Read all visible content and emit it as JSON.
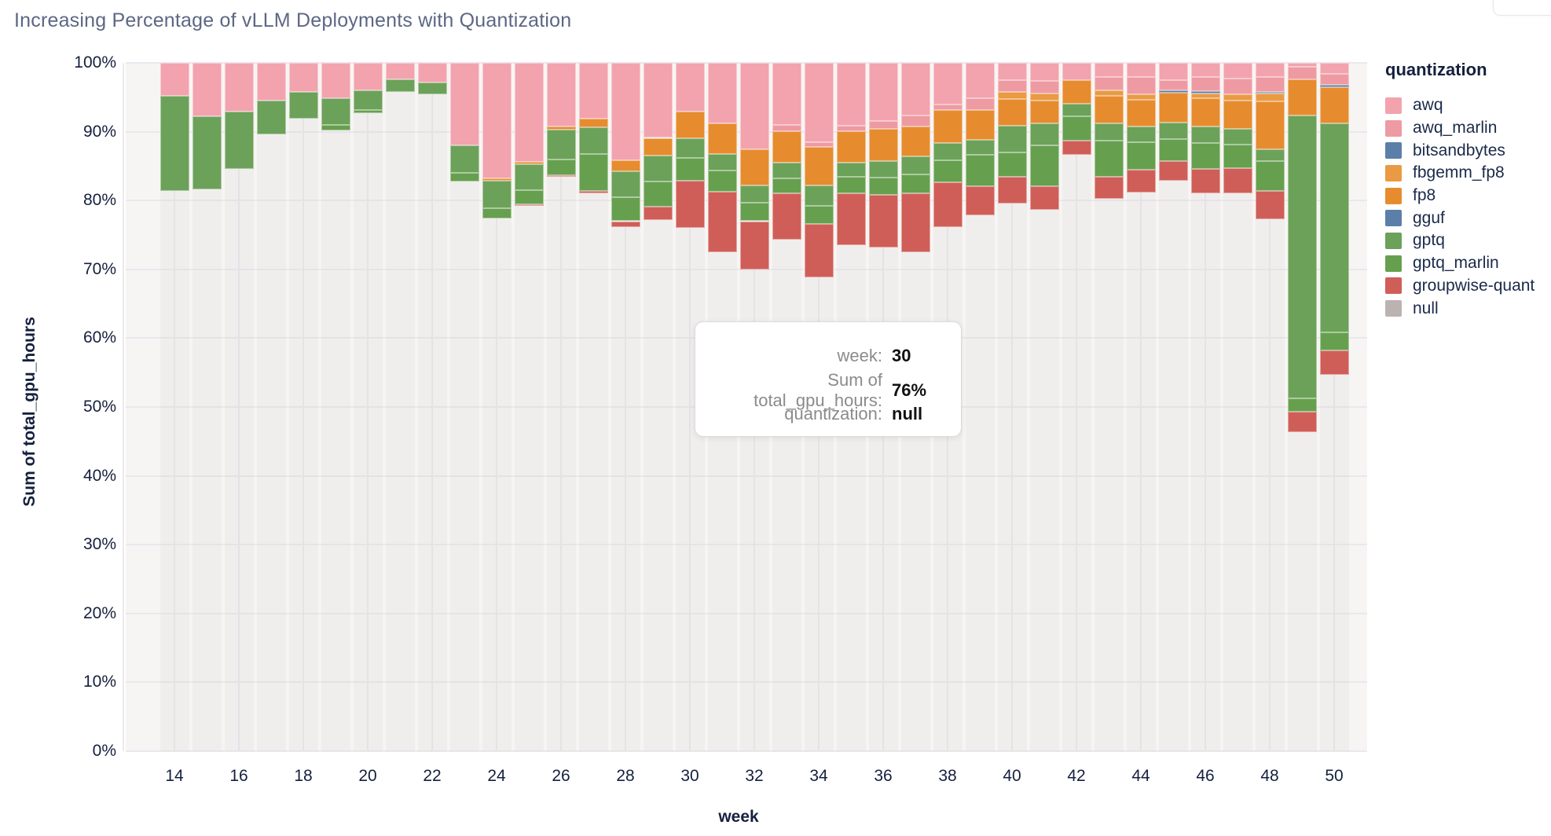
{
  "title": "Increasing Percentage of vLLM Deployments with Quantization",
  "tooltip": {
    "rows": [
      {
        "label": "week:",
        "value": "30"
      },
      {
        "label": "Sum of total_gpu_hours:",
        "value": "76%"
      },
      {
        "label": "quantization:",
        "value": "null"
      }
    ]
  },
  "chart_data": {
    "type": "bar",
    "stacked": true,
    "normalized": "percent",
    "title": "Increasing Percentage of vLLM Deployments with Quantization",
    "xlabel": "week",
    "ylabel": "Sum of total_gpu_hours",
    "ylim": [
      0,
      100
    ],
    "y_tick_format": "percent",
    "y_ticks": [
      0,
      10,
      20,
      30,
      40,
      50,
      60,
      70,
      80,
      90,
      100
    ],
    "x_tick_labels": [
      14,
      16,
      18,
      20,
      22,
      24,
      26,
      28,
      30,
      32,
      34,
      36,
      38,
      40,
      42,
      44,
      46,
      48,
      50
    ],
    "grid": true,
    "legend_position": "right",
    "legend_title": "quantization",
    "legend_order": [
      "awq",
      "awq_marlin",
      "bitsandbytes",
      "fbgemm_fp8",
      "fp8",
      "gguf",
      "gptq",
      "gptq_marlin",
      "groupwise-quant",
      "null"
    ],
    "weeks": [
      14,
      15,
      16,
      17,
      18,
      19,
      20,
      21,
      22,
      23,
      24,
      25,
      26,
      27,
      28,
      29,
      30,
      31,
      32,
      33,
      34,
      35,
      36,
      37,
      38,
      39,
      40,
      41,
      42,
      43,
      44,
      45,
      46,
      47,
      48,
      49,
      50
    ],
    "series": [
      {
        "name": "null",
        "color": "#BAB3B0",
        "ghost": true,
        "values": [
          81.4,
          81.6,
          84.6,
          89.6,
          91.9,
          90.2,
          92.7,
          95.8,
          95.4,
          82.8,
          77.4,
          79.2,
          83.4,
          81.1,
          76.2,
          77.2,
          76.0,
          72.5,
          70.0,
          74.3,
          68.8,
          73.5,
          73.2,
          72.5,
          76.2,
          77.9,
          79.6,
          78.7,
          86.7,
          80.2,
          81.2,
          82.9,
          81.0,
          81.0,
          77.3,
          46.3,
          54.7
        ]
      },
      {
        "name": "groupwise-quant",
        "color": "#D05E58",
        "values": [
          0,
          0,
          0,
          0,
          0,
          0,
          0,
          0,
          0,
          0,
          0,
          0.3,
          0.3,
          0.3,
          0.8,
          1.9,
          6.9,
          8.8,
          7.0,
          6.7,
          7.8,
          7.5,
          7.6,
          8.5,
          6.4,
          4.2,
          3.9,
          3.4,
          2.0,
          3.3,
          3.3,
          2.8,
          3.6,
          3.7,
          4.1,
          3.0,
          3.5
        ]
      },
      {
        "name": "gptq_marlin",
        "color": "#66A04F",
        "values": [
          0,
          0,
          0,
          0,
          0,
          0.8,
          0.4,
          0,
          0,
          1.2,
          1.5,
          2.0,
          2.3,
          5.4,
          3.5,
          3.7,
          3.3,
          3.1,
          2.7,
          2.2,
          2.6,
          2.4,
          2.5,
          2.8,
          3.2,
          4.6,
          3.5,
          5.9,
          3.5,
          5.2,
          4.0,
          3.2,
          3.8,
          3.4,
          4.3,
          2.0,
          2.7
        ]
      },
      {
        "name": "gptq",
        "color": "#6CA159",
        "values": [
          13.8,
          10.6,
          8.3,
          4.9,
          3.9,
          3.9,
          2.9,
          1.8,
          1.7,
          4.0,
          4.0,
          3.8,
          4.3,
          3.8,
          3.7,
          3.7,
          2.8,
          2.4,
          2.5,
          2.3,
          3.0,
          2.1,
          2.4,
          2.6,
          2.6,
          2.1,
          3.9,
          3.2,
          1.9,
          2.5,
          2.3,
          2.4,
          2.4,
          2.3,
          1.8,
          41.1,
          30.3
        ]
      },
      {
        "name": "gguf",
        "color": "#5B7FA9",
        "values": [
          0,
          0,
          0,
          0,
          0,
          0,
          0,
          0,
          0,
          0,
          0,
          0,
          0,
          0,
          0,
          0,
          0,
          0,
          0,
          0,
          0,
          0,
          0,
          0,
          0,
          0,
          0,
          0,
          0,
          0,
          0,
          0,
          0,
          0,
          0,
          0,
          0
        ]
      },
      {
        "name": "fp8",
        "color": "#E68C2F",
        "values": [
          0,
          0,
          0,
          0,
          0,
          0,
          0,
          0,
          0,
          0,
          0.3,
          0.3,
          0.5,
          1.3,
          1.7,
          2.6,
          3.9,
          4.4,
          5.2,
          4.6,
          5.6,
          4.6,
          4.7,
          4.4,
          4.7,
          4.3,
          3.9,
          3.3,
          3.4,
          4.0,
          3.8,
          4.4,
          4.1,
          4.1,
          6.9,
          5.2,
          5.3
        ]
      },
      {
        "name": "fbgemm_fp8",
        "color": "#EA9A43",
        "values": [
          0,
          0,
          0,
          0,
          0,
          0,
          0,
          0,
          0,
          0,
          0,
          0,
          0,
          0,
          0,
          0,
          0,
          0,
          0,
          0,
          0,
          0,
          0,
          0,
          0,
          0,
          1.0,
          1.0,
          0,
          0.8,
          0.8,
          0,
          0.7,
          0.9,
          1.1,
          0,
          0
        ]
      },
      {
        "name": "bitsandbytes",
        "color": "#5B7FA9",
        "values": [
          0,
          0,
          0,
          0,
          0,
          0,
          0,
          0,
          0,
          0,
          0,
          0,
          0,
          0,
          0,
          0,
          0,
          0,
          0,
          0,
          0,
          0,
          0,
          0,
          0,
          0,
          0,
          0,
          0,
          0,
          0,
          0.3,
          0.3,
          0,
          0.3,
          0,
          0.3
        ]
      },
      {
        "name": "awq_marlin",
        "color": "#EE9AA2",
        "values": [
          0,
          0,
          0,
          0,
          0,
          0,
          0,
          0,
          0,
          0,
          0,
          0,
          0,
          0,
          0,
          0,
          0,
          0,
          0,
          0.9,
          0.7,
          0.8,
          1.2,
          1.6,
          0.9,
          1.8,
          1.7,
          1.9,
          0,
          2.0,
          2.6,
          1.5,
          2.0,
          2.3,
          2.2,
          1.8,
          1.6
        ]
      },
      {
        "name": "awq",
        "color": "#F2A3AE",
        "values": [
          4.8,
          7.8,
          7.1,
          5.5,
          4.2,
          5.1,
          4.0,
          2.4,
          2.9,
          12.0,
          16.8,
          14.4,
          9.2,
          8.1,
          14.1,
          10.9,
          7.1,
          8.8,
          12.6,
          9.0,
          11.5,
          9.1,
          8.4,
          7.6,
          6.0,
          5.1,
          2.5,
          2.6,
          2.5,
          2.0,
          2.0,
          2.5,
          2.1,
          2.3,
          2.0,
          0.6,
          1.6
        ]
      }
    ]
  }
}
